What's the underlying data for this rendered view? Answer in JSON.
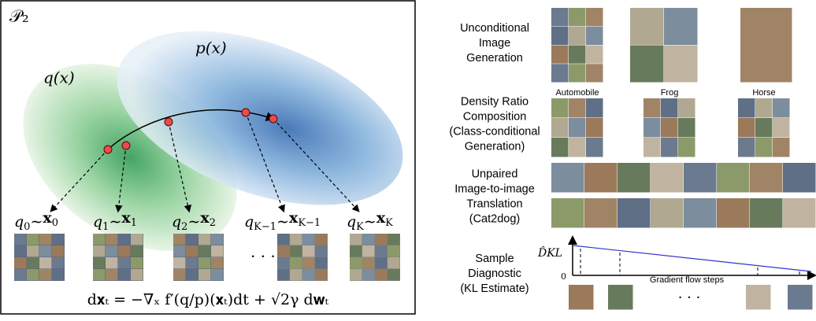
{
  "left_panel": {
    "space_label": "𝒫₂",
    "p_label": "p(x)",
    "q_label": "q(x)",
    "sample_labels": [
      {
        "left": "q",
        "left_sub": "0",
        "right": "x",
        "right_sub": "0"
      },
      {
        "left": "q",
        "left_sub": "1",
        "right": "x",
        "right_sub": "1"
      },
      {
        "left": "q",
        "left_sub": "2",
        "right": "x",
        "right_sub": "2"
      },
      {
        "left": "q",
        "left_sub": "K−1",
        "right": "x",
        "right_sub": "K−1"
      },
      {
        "left": "q",
        "left_sub": "K",
        "right": "x",
        "right_sub": "K"
      }
    ],
    "ellipsis": "· · ·",
    "equation": "d𝐱ₜ = −∇ₓ f′(q/p)(𝐱ₜ)dt + √2γ d𝐰ₜ"
  },
  "right_panel": {
    "rows": [
      {
        "label": [
          "Unconditional",
          "Image",
          "Generation"
        ]
      },
      {
        "label": [
          "Density Ratio",
          "Composition",
          "(Class-conditional",
          "Generation)"
        ],
        "classes": [
          "Automobile",
          "Frog",
          "Horse"
        ]
      },
      {
        "label": [
          "Unpaired",
          "Image-to-image",
          "Translation",
          "(Cat2dog)"
        ]
      },
      {
        "label": [
          "Sample",
          "Diagnostic",
          "(KL Estimate)"
        ],
        "y_axis_label": "D̂KL",
        "origin_label": "0",
        "x_axis_label": "Gradient flow steps",
        "ellipsis": "· · ·"
      }
    ]
  }
}
